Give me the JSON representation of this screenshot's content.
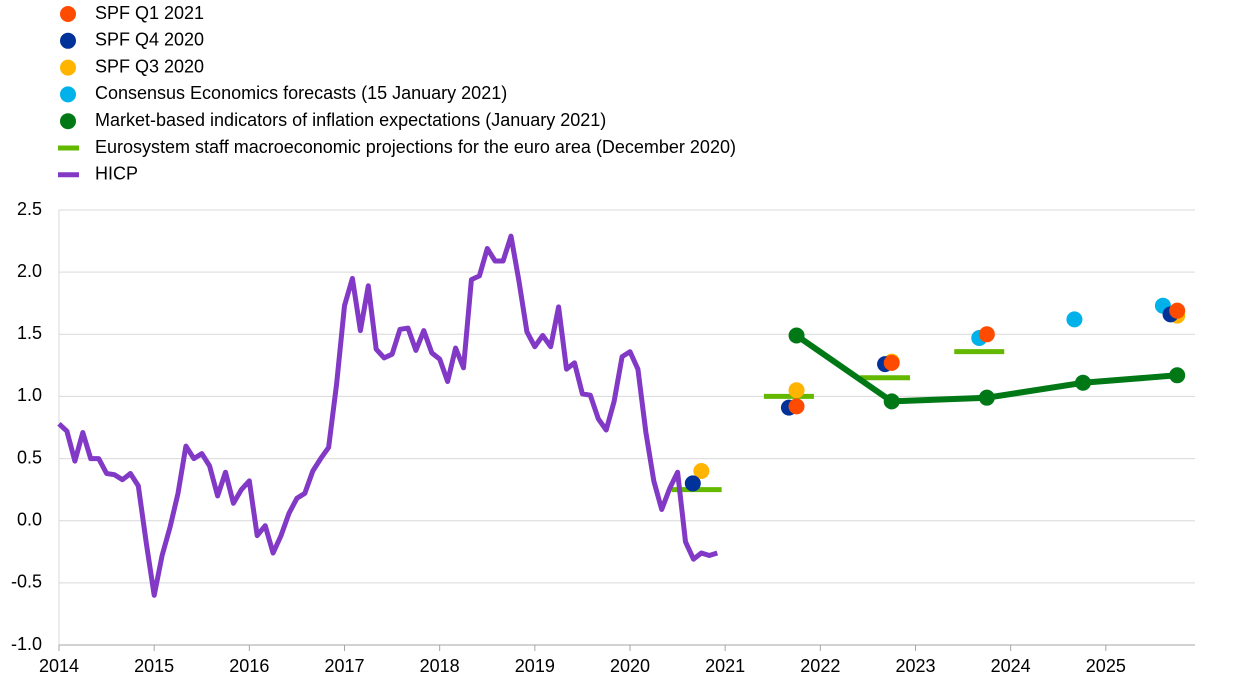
{
  "chart_data": {
    "type": "line",
    "xlim": [
      2014,
      2026
    ],
    "ylim": [
      -1.0,
      2.5
    ],
    "xticks": [
      2014,
      2015,
      2016,
      2017,
      2018,
      2019,
      2020,
      2021,
      2022,
      2023,
      2024,
      2025
    ],
    "yticks": [
      {
        "value": -1,
        "label": "-1.0"
      },
      -0.5,
      {
        "value": 0,
        "label": "0.0"
      },
      0.5,
      {
        "value": 1,
        "label": "1.0"
      },
      1.5,
      {
        "value": 2,
        "label": "2.0"
      },
      2.5
    ],
    "grid": true,
    "legend": "top-left",
    "series": [
      {
        "name": "SPF Q1 2021",
        "color": "#ff4b00",
        "type": "scatter",
        "x": [
          2021.75,
          2022.75,
          2023.75,
          2025.75
        ],
        "values": [
          0.92,
          1.27,
          1.5,
          1.69
        ]
      },
      {
        "name": "SPF Q4 2020",
        "color": "#003299",
        "type": "scatter",
        "x": [
          2020.66,
          2021.67,
          2022.68,
          2025.68
        ],
        "values": [
          0.3,
          0.91,
          1.26,
          1.66
        ]
      },
      {
        "name": "SPF Q3 2020",
        "color": "#ffb400",
        "type": "scatter",
        "x": [
          2020.75,
          2021.75,
          2022.75,
          2025.75
        ],
        "values": [
          0.4,
          1.05,
          1.28,
          1.65
        ]
      },
      {
        "name": "Consensus Economics forecasts (15 January 2021)",
        "color": "#00b1ea",
        "type": "scatter",
        "x": [
          2023.67,
          2024.67,
          2025.6
        ],
        "values": [
          1.47,
          1.62,
          1.73
        ]
      },
      {
        "name": "Market-based indicators of inflation expectations (January 2021)",
        "color": "#007816",
        "type": "line-markers",
        "x": [
          2021.75,
          2022.75,
          2023.75,
          2024.76,
          2025.75
        ],
        "values": [
          1.49,
          0.96,
          0.99,
          1.11,
          1.17
        ]
      },
      {
        "name": "Eurosystem staff macroeconomic projections for the euro area (December 2020)",
        "color": "#65b800",
        "type": "dash",
        "x": [
          2020.7,
          2021.67,
          2022.68,
          2023.67
        ],
        "values": [
          0.25,
          1.0,
          1.15,
          1.36
        ]
      },
      {
        "name": "HICP",
        "color": "#8139c6",
        "type": "line",
        "x": [
          2014,
          2014.083,
          2014.167,
          2014.25,
          2014.333,
          2014.417,
          2014.5,
          2014.583,
          2014.667,
          2014.75,
          2014.833,
          2014.917,
          2015,
          2015.083,
          2015.167,
          2015.25,
          2015.333,
          2015.417,
          2015.5,
          2015.583,
          2015.667,
          2015.75,
          2015.833,
          2015.917,
          2016,
          2016.083,
          2016.167,
          2016.25,
          2016.333,
          2016.417,
          2016.5,
          2016.583,
          2016.667,
          2016.75,
          2016.833,
          2016.917,
          2017,
          2017.083,
          2017.167,
          2017.25,
          2017.333,
          2017.417,
          2017.5,
          2017.583,
          2017.667,
          2017.75,
          2017.833,
          2017.917,
          2018,
          2018.083,
          2018.167,
          2018.25,
          2018.333,
          2018.417,
          2018.5,
          2018.583,
          2018.667,
          2018.75,
          2018.833,
          2018.917,
          2019,
          2019.083,
          2019.167,
          2019.25,
          2019.333,
          2019.417,
          2019.5,
          2019.583,
          2019.667,
          2019.75,
          2019.833,
          2019.917,
          2020,
          2020.083,
          2020.167,
          2020.25,
          2020.333,
          2020.417,
          2020.5,
          2020.583,
          2020.667,
          2020.75,
          2020.833,
          2020.917
        ],
        "values": [
          0.78,
          0.72,
          0.48,
          0.71,
          0.5,
          0.5,
          0.38,
          0.37,
          0.33,
          0.38,
          0.28,
          -0.18,
          -0.6,
          -0.28,
          -0.05,
          0.22,
          0.6,
          0.5,
          0.54,
          0.44,
          0.2,
          0.39,
          0.14,
          0.25,
          0.32,
          -0.12,
          -0.04,
          -0.26,
          -0.12,
          0.06,
          0.18,
          0.22,
          0.4,
          0.5,
          0.59,
          1.1,
          1.73,
          1.95,
          1.53,
          1.89,
          1.38,
          1.31,
          1.34,
          1.54,
          1.55,
          1.37,
          1.53,
          1.35,
          1.3,
          1.12,
          1.39,
          1.23,
          1.94,
          1.97,
          2.19,
          2.09,
          2.09,
          2.29,
          1.93,
          1.52,
          1.4,
          1.49,
          1.4,
          1.72,
          1.22,
          1.27,
          1.02,
          1.01,
          0.82,
          0.73,
          0.96,
          1.32,
          1.36,
          1.22,
          0.71,
          0.32,
          0.09,
          0.26,
          0.39,
          -0.17,
          -0.31,
          -0.26,
          -0.28,
          -0.26
        ]
      }
    ]
  }
}
